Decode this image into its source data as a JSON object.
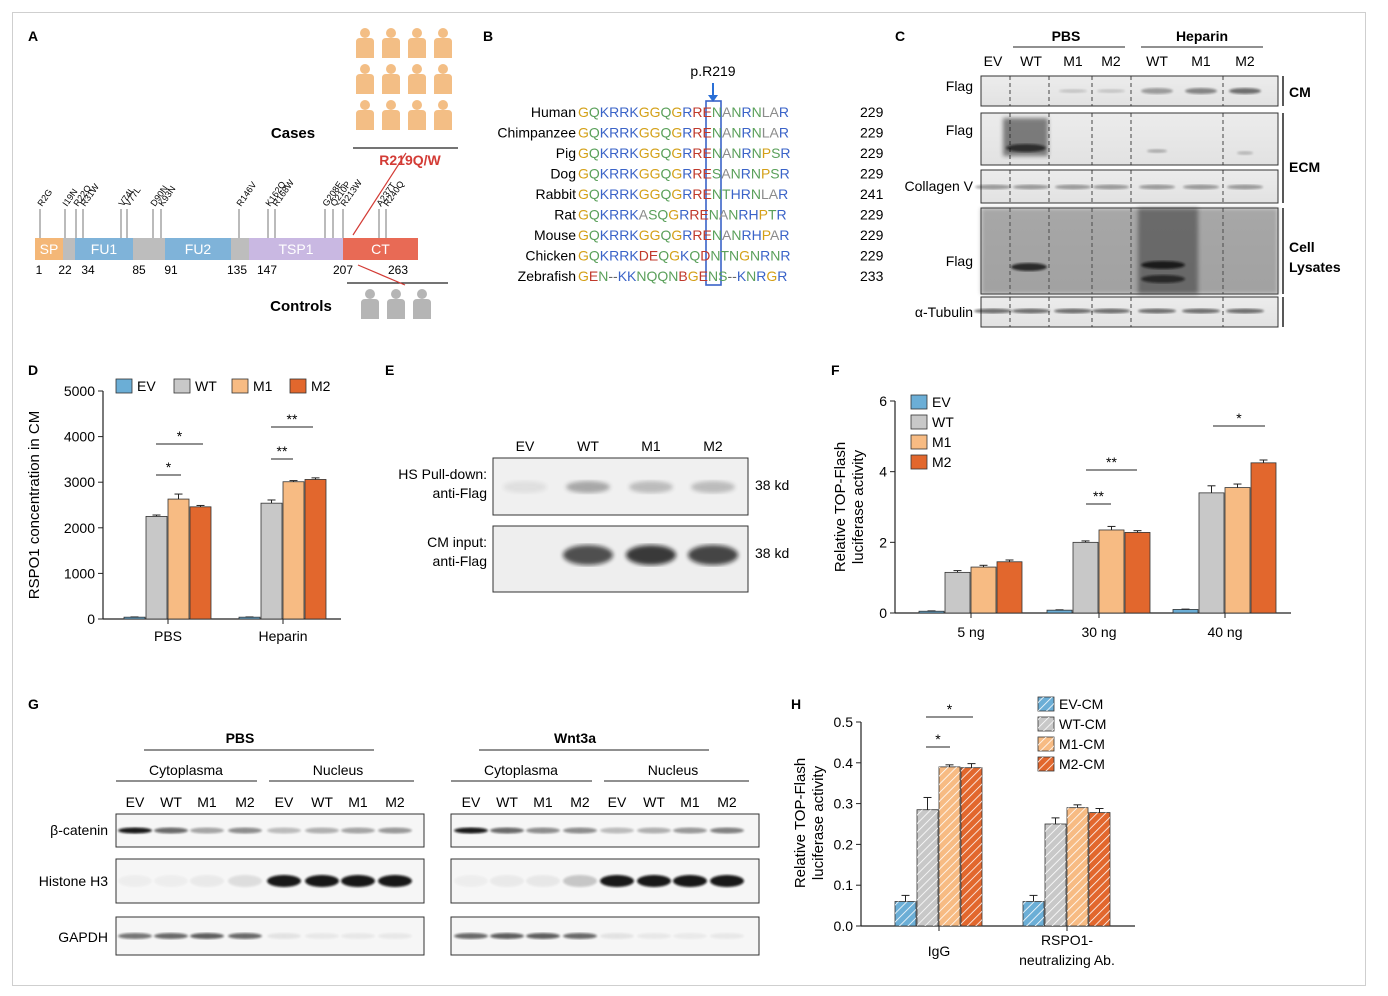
{
  "panel_letters": {
    "A": "A",
    "B": "B",
    "C": "C",
    "D": "D",
    "E": "E",
    "F": "F",
    "G": "G",
    "H": "H"
  },
  "panelA": {
    "cases_label": "Cases",
    "controls_label": "Controls",
    "variant_label": "R219Q/W",
    "domains": [
      {
        "name": "SP",
        "color": "#f4b777"
      },
      {
        "name": "",
        "color": "#bdbdbd"
      },
      {
        "name": "FU1",
        "color": "#7fb3d9"
      },
      {
        "name": "",
        "color": "#bdbdbd"
      },
      {
        "name": "FU2",
        "color": "#7fb3d9"
      },
      {
        "name": "",
        "color": "#bdbdbd"
      },
      {
        "name": "TSP1",
        "color": "#c9b8e2"
      },
      {
        "name": "CT",
        "color": "#e86a55"
      }
    ],
    "positions": [
      "1",
      "22",
      "34",
      "85",
      "91",
      "135",
      "147",
      "207",
      "263"
    ],
    "mutations": [
      "R2G",
      "I19N",
      "R22Q",
      "R31W",
      "V74I",
      "V77L",
      "D90N",
      "K93N",
      "R146V",
      "K162Q",
      "R168W",
      "G208E",
      "Q210P",
      "R213W",
      "A237T",
      "R240Q"
    ]
  },
  "panelB": {
    "marker": "p.R219",
    "rows": [
      {
        "species": "Human",
        "seq": "GQKRRKGGQGRRENANRNLAR",
        "num": "229"
      },
      {
        "species": "Chimpanzee",
        "seq": "GQKRRKGGQGRRENANRNLAR",
        "num": "229"
      },
      {
        "species": "Pig",
        "seq": "GQKRRKGGQGRRENANRNPSR",
        "num": "229"
      },
      {
        "species": "Dog",
        "seq": "GQKRRKGGQGRRESANRNPSR",
        "num": "229"
      },
      {
        "species": "Rabbit",
        "seq": "GQKRRKGGQGRRENTHRNLAR",
        "num": "241"
      },
      {
        "species": "Rat",
        "seq": "GQKRRKASQGRRENANRHPTR",
        "num": "229"
      },
      {
        "species": "Mouse",
        "seq": "GQKRRKGGQGRRENANRHPAR",
        "num": "229"
      },
      {
        "species": "Chicken",
        "seq": "GQKRRKDEQGKQDNTNGNRNR",
        "num": "229"
      },
      {
        "species": "Zebrafish",
        "seq": "GEN--KKNQQNBGENS--KNRGR",
        "num": "233"
      }
    ]
  },
  "panelC": {
    "groups": [
      "PBS",
      "Heparin"
    ],
    "lanes": [
      "EV",
      "WT",
      "M1",
      "M2",
      "WT",
      "M1",
      "M2"
    ],
    "rows": [
      "Flag",
      "Flag",
      "Collagen V",
      "Flag",
      "α-Tubulin"
    ],
    "sections": [
      "CM",
      "ECM",
      "Cell Lysates"
    ]
  },
  "panelD": {
    "ylabel": "RSPO1 concentration in CM",
    "yticks": [
      "0",
      "1000",
      "2000",
      "3000",
      "4000",
      "5000"
    ],
    "chart_data": {
      "type": "bar",
      "categories": [
        "PBS",
        "Heparin"
      ],
      "series": [
        {
          "name": "EV",
          "color": "#6baed6",
          "values": [
            40,
            40
          ],
          "err": [
            5,
            5
          ]
        },
        {
          "name": "WT",
          "color": "#c8c8c8",
          "values": [
            2250,
            2540
          ],
          "err": [
            30,
            70
          ]
        },
        {
          "name": "M1",
          "color": "#f7bb83",
          "values": [
            2630,
            3010
          ],
          "err": [
            110,
            25
          ]
        },
        {
          "name": "M2",
          "color": "#e2672d",
          "values": [
            2460,
            3060
          ],
          "err": [
            30,
            35
          ]
        }
      ],
      "ylim": [
        0,
        5000
      ],
      "sig": [
        "*",
        "*",
        "**",
        "**"
      ]
    }
  },
  "panelE": {
    "lanes": [
      "EV",
      "WT",
      "M1",
      "M2"
    ],
    "row1_label": "HS Pull-down:",
    "row1_label2": "anti-Flag",
    "row2_label": "CM input:",
    "row2_label2": "anti-Flag",
    "kd": "38 kd"
  },
  "panelF": {
    "ylabel": "Relative TOP-Flash",
    "ylabel2": "luciferase activity",
    "yticks": [
      "0",
      "2",
      "4",
      "6"
    ],
    "chart_data": {
      "type": "bar",
      "categories": [
        "5 ng",
        "30 ng",
        "40 ng"
      ],
      "series": [
        {
          "name": "EV",
          "color": "#6baed6",
          "values": [
            0.05,
            0.08,
            0.1
          ],
          "err": [
            0.01,
            0.01,
            0.01
          ]
        },
        {
          "name": "WT",
          "color": "#c8c8c8",
          "values": [
            1.15,
            2.0,
            3.4
          ],
          "err": [
            0.05,
            0.04,
            0.2
          ]
        },
        {
          "name": "M1",
          "color": "#f7bb83",
          "values": [
            1.3,
            2.35,
            3.55
          ],
          "err": [
            0.05,
            0.1,
            0.1
          ]
        },
        {
          "name": "M2",
          "color": "#e2672d",
          "values": [
            1.45,
            2.28,
            4.25
          ],
          "err": [
            0.05,
            0.05,
            0.08
          ]
        }
      ],
      "ylim": [
        0,
        6
      ],
      "sig": [
        "**",
        "**",
        "*"
      ]
    }
  },
  "panelG": {
    "left_title": "PBS",
    "right_title": "Wnt3a",
    "cyto": "Cytoplasma",
    "nucleus": "Nucleus",
    "lanes": [
      "EV",
      "WT",
      "M1",
      "M2",
      "EV",
      "WT",
      "M1",
      "M2"
    ],
    "rows": [
      "β-catenin",
      "Histone H3",
      "GAPDH"
    ]
  },
  "panelH": {
    "ylabel": "Relative TOP-Flash",
    "ylabel2": "luciferase activity",
    "yticks": [
      "0.0",
      "0.1",
      "0.2",
      "0.3",
      "0.4",
      "0.5"
    ],
    "cat1": "IgG",
    "cat2a": "RSPO1-",
    "cat2b": "neutralizing Ab.",
    "chart_data": {
      "type": "bar",
      "categories": [
        "IgG",
        "RSPO1-neutralizing Ab."
      ],
      "series": [
        {
          "name": "EV-CM",
          "color": "#6baed6",
          "values": [
            0.06,
            0.06
          ],
          "err": [
            0.015,
            0.015
          ]
        },
        {
          "name": "WT-CM",
          "color": "#c8c8c8",
          "values": [
            0.285,
            0.25
          ],
          "err": [
            0.03,
            0.015
          ]
        },
        {
          "name": "M1-CM",
          "color": "#f7bb83",
          "values": [
            0.39,
            0.29
          ],
          "err": [
            0.005,
            0.007
          ]
        },
        {
          "name": "M2-CM",
          "color": "#e2672d",
          "values": [
            0.388,
            0.278
          ],
          "err": [
            0.01,
            0.01
          ]
        }
      ],
      "ylim": [
        0,
        0.5
      ],
      "sig": [
        "*",
        "*"
      ]
    }
  }
}
